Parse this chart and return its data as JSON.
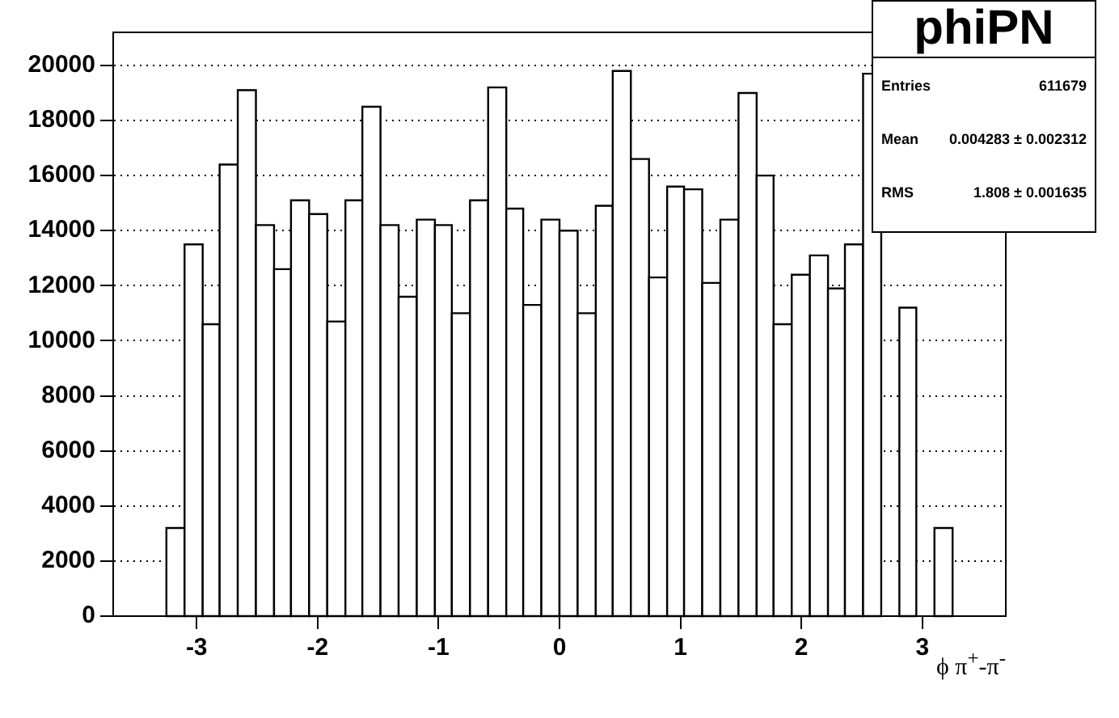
{
  "chart_data": {
    "type": "histogram",
    "title": "phiPN",
    "xlabel": "ϕ π$^{+}$-π$^{-}$",
    "annotations": [
      "Entries 611679",
      "Mean 0.004283 ± 0.002312",
      "RMS 1.808 ± 0.001635"
    ],
    "bins": [
      -3.25,
      -3.1,
      -2.95,
      -2.81,
      -2.66,
      -2.51,
      -2.36,
      -2.22,
      -2.07,
      -1.92,
      -1.77,
      -1.63,
      -1.48,
      -1.33,
      -1.18,
      -1.03,
      -0.89,
      -0.74,
      -0.59,
      -0.44,
      -0.3,
      -0.15,
      0,
      0.15,
      0.3,
      0.44,
      0.59,
      0.74,
      0.89,
      1.03,
      1.18,
      1.33,
      1.48,
      1.63,
      1.77,
      1.92,
      2.07,
      2.22,
      2.36,
      2.51,
      2.66,
      2.81,
      2.95,
      3.1,
      3.25
    ],
    "values": [
      3200,
      13500,
      10600,
      16400,
      19100,
      14200,
      12600,
      15100,
      14600,
      10700,
      15100,
      18500,
      14200,
      11600,
      14400,
      14200,
      11000,
      15100,
      19200,
      14800,
      11300,
      14400,
      14000,
      11000,
      14900,
      19800,
      16600,
      12300,
      15600,
      15500,
      12100,
      14400,
      19000,
      16000,
      10600,
      12400,
      13100,
      11900,
      13500,
      19700,
      null,
      11200,
      null,
      3200
    ],
    "color": "#000000",
    "xlim": [
      -3.69,
      3.69
    ],
    "xticks": [
      -3,
      -2,
      -1,
      0,
      1,
      2,
      3
    ],
    "ylim": [
      0,
      21200
    ],
    "yticks": [
      0,
      2000,
      4000,
      6000,
      8000,
      10000,
      12000,
      14000,
      16000,
      18000,
      20000
    ],
    "grid": "y",
    "legend": false
  }
}
